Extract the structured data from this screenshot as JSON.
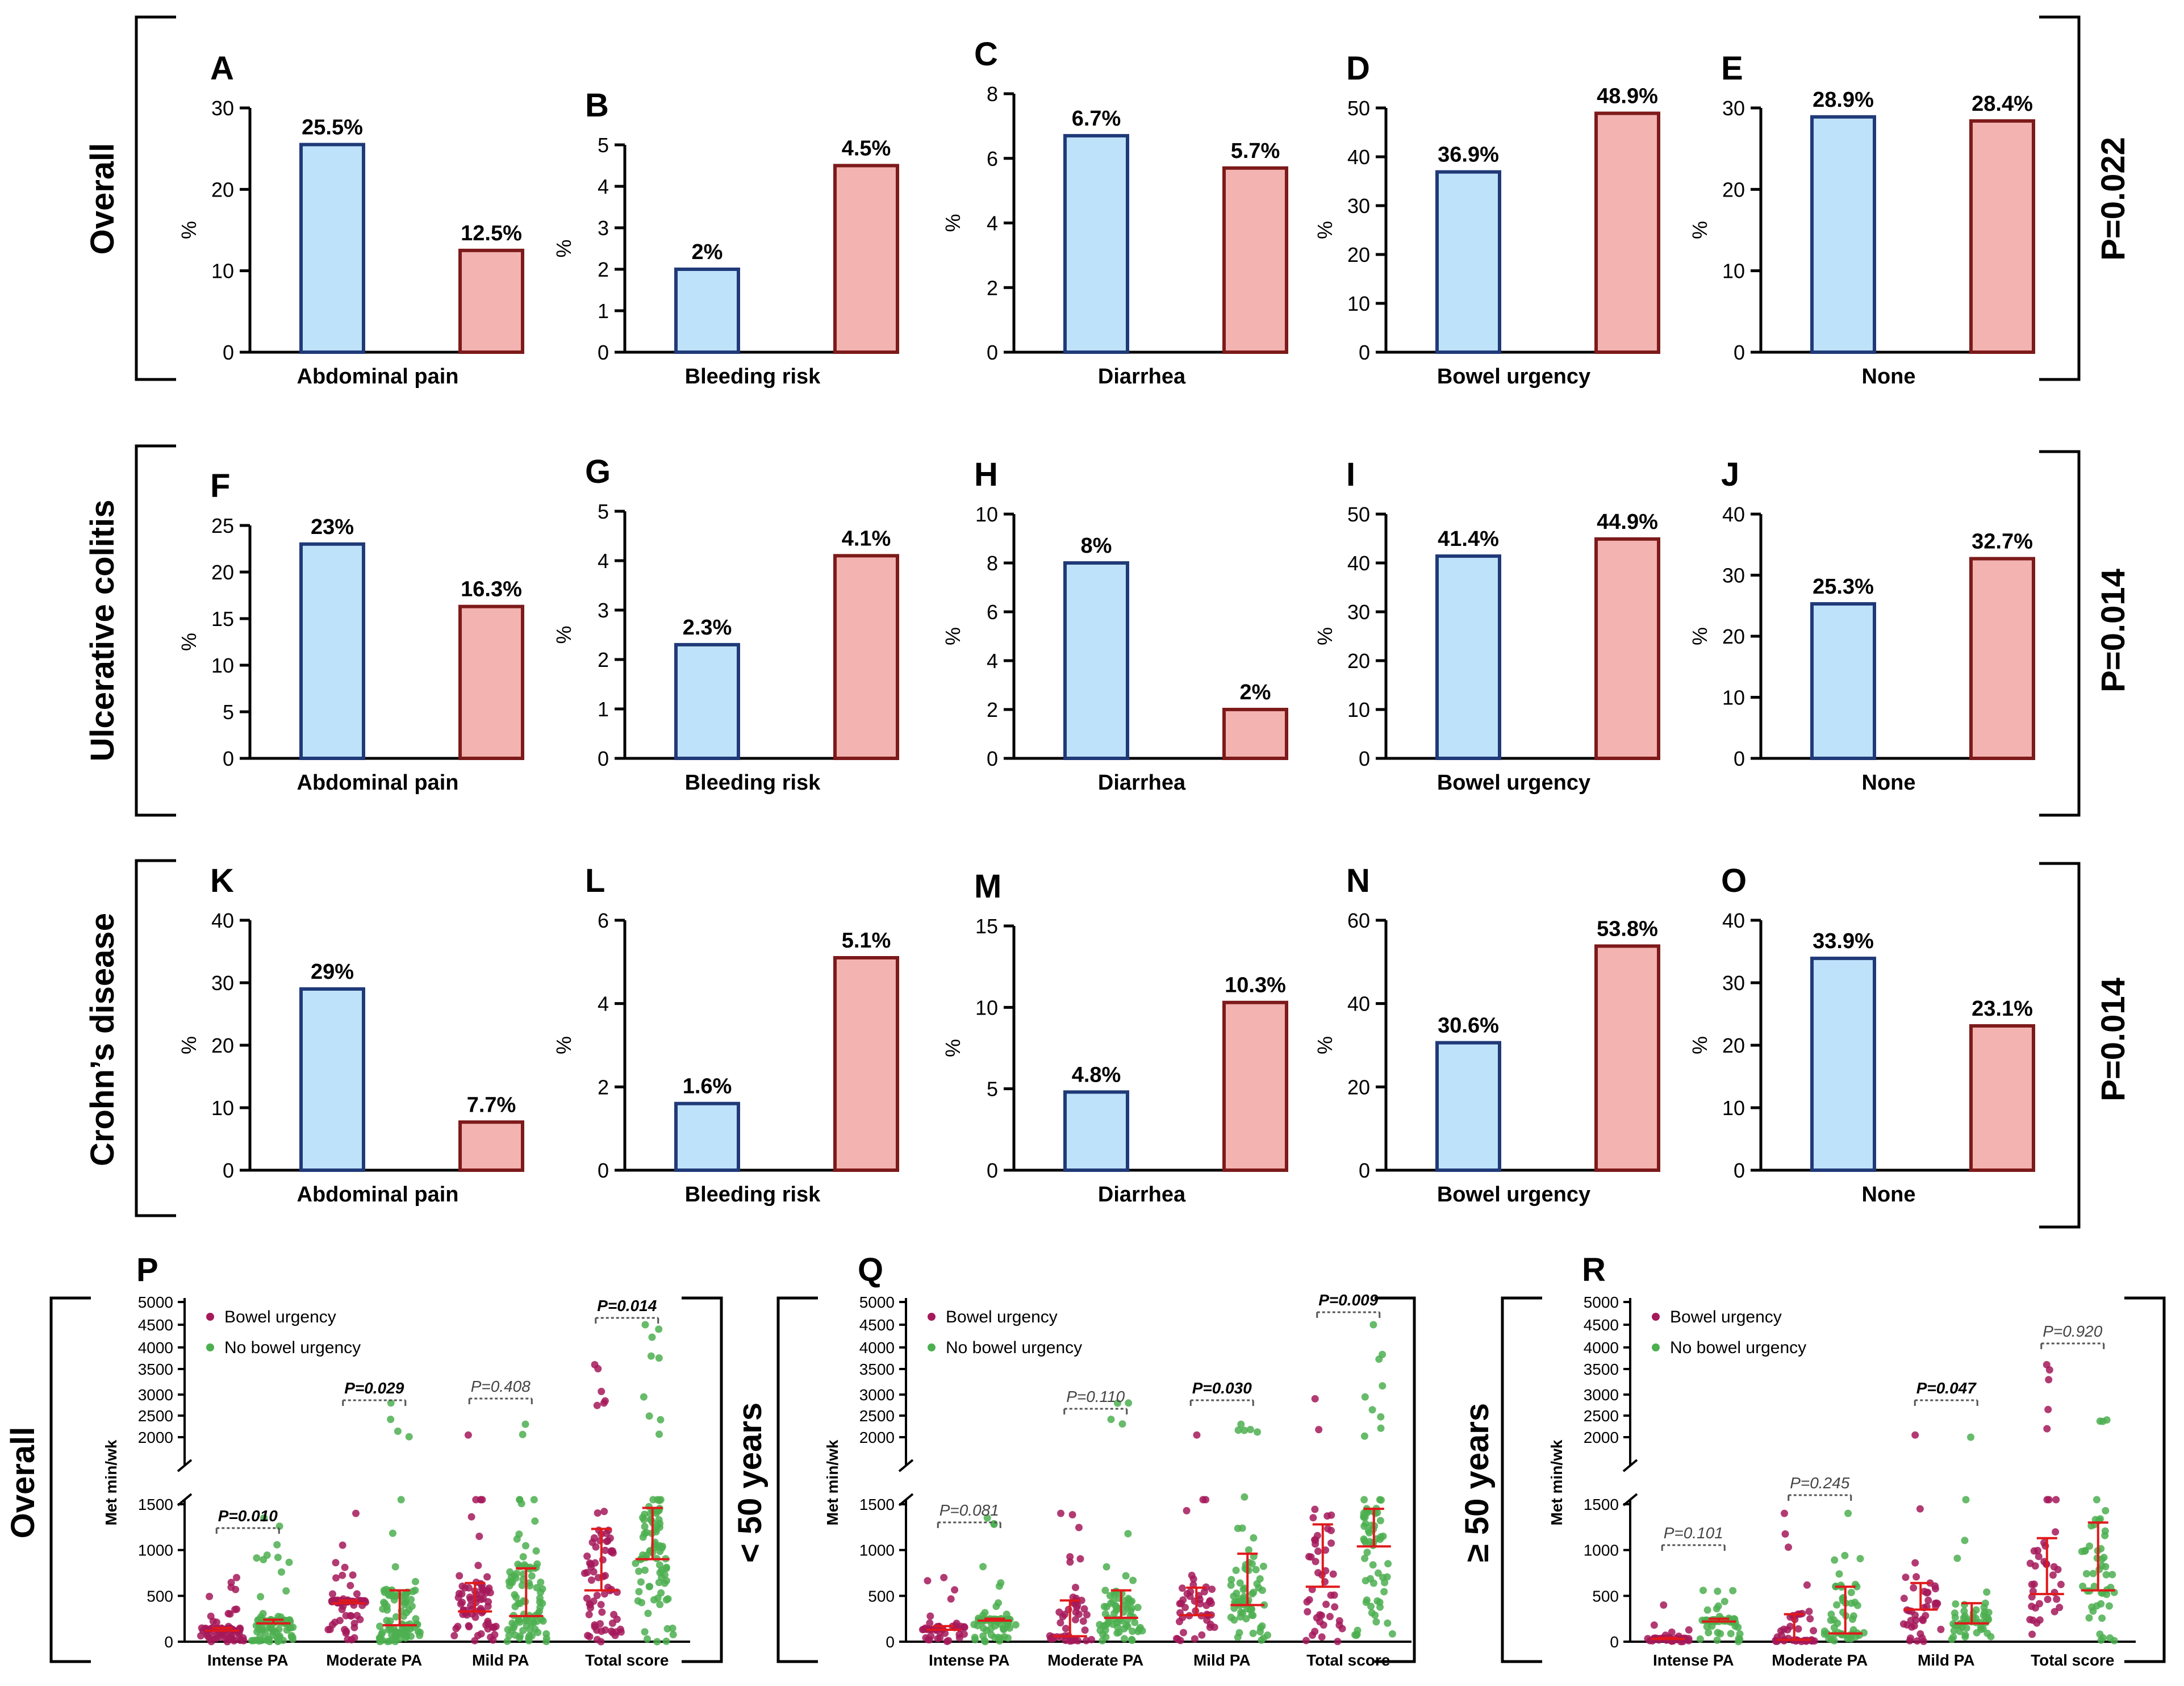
{
  "colors": {
    "blue_fill": "#bfe2fb",
    "blue_edge": "#203a78",
    "red_fill": "#f2b3b1",
    "red_edge": "#7d1a1a",
    "urgency_dot": "#a5195b",
    "no_urgency_dot": "#4caf50",
    "median_line": "#e0191b",
    "axis": "#000000"
  },
  "row_labels": [
    "Overall",
    "Ulcerative colitis",
    "Crohn’s disease"
  ],
  "row_pvalues": [
    "P=0.022",
    "P=0.014",
    "P=0.014"
  ],
  "bottom_row_labels": [
    "Overall",
    "< 50 years",
    "≥ 50 years"
  ],
  "scatter_legend": [
    "Bowel urgency",
    "No bowel urgency"
  ],
  "scatter_categories": [
    "Intense PA",
    "Moderate PA",
    "Mild PA",
    "Total score"
  ],
  "scatter_ylabel": "Met min/wk",
  "chart_data": [
    {
      "panel": "A",
      "type": "bar",
      "xlabel": "Abdominal pain",
      "ylabel": "%",
      "ylim": [
        0,
        30
      ],
      "ticks": [
        0,
        10,
        20,
        30
      ],
      "values": [
        25.5,
        12.5
      ],
      "labels": [
        "25.5%",
        "12.5%"
      ]
    },
    {
      "panel": "B",
      "type": "bar",
      "xlabel": "Bleeding risk",
      "ylabel": "%",
      "ylim": [
        0,
        5
      ],
      "ticks": [
        0,
        1,
        2,
        3,
        4,
        5
      ],
      "values": [
        2,
        4.5
      ],
      "labels": [
        "2%",
        "4.5%"
      ]
    },
    {
      "panel": "C",
      "type": "bar",
      "xlabel": "Diarrhea",
      "ylabel": "%",
      "ylim": [
        0,
        8
      ],
      "ticks": [
        0,
        2,
        4,
        6,
        8
      ],
      "values": [
        6.7,
        5.7
      ],
      "labels": [
        "6.7%",
        "5.7%"
      ]
    },
    {
      "panel": "D",
      "type": "bar",
      "xlabel": "Bowel urgency",
      "ylabel": "%",
      "ylim": [
        0,
        50
      ],
      "ticks": [
        0,
        10,
        20,
        30,
        40,
        50
      ],
      "values": [
        36.9,
        48.9
      ],
      "labels": [
        "36.9%",
        "48.9%"
      ]
    },
    {
      "panel": "E",
      "type": "bar",
      "xlabel": "None",
      "ylabel": "%",
      "ylim": [
        0,
        30
      ],
      "ticks": [
        0,
        10,
        20,
        30
      ],
      "values": [
        28.9,
        28.4
      ],
      "labels": [
        "28.9%",
        "28.4%"
      ]
    },
    {
      "panel": "F",
      "type": "bar",
      "xlabel": "Abdominal pain",
      "ylabel": "%",
      "ylim": [
        0,
        25
      ],
      "ticks": [
        0,
        5,
        10,
        15,
        20,
        25
      ],
      "values": [
        23,
        16.3
      ],
      "labels": [
        "23%",
        "16.3%"
      ]
    },
    {
      "panel": "G",
      "type": "bar",
      "xlabel": "Bleeding risk",
      "ylabel": "%",
      "ylim": [
        0,
        5
      ],
      "ticks": [
        0,
        1,
        2,
        3,
        4,
        5
      ],
      "values": [
        2.3,
        4.1
      ],
      "labels": [
        "2.3%",
        "4.1%"
      ]
    },
    {
      "panel": "H",
      "type": "bar",
      "xlabel": "Diarrhea",
      "ylabel": "%",
      "ylim": [
        0,
        10
      ],
      "ticks": [
        0,
        2,
        4,
        6,
        8,
        10
      ],
      "values": [
        8,
        2
      ],
      "labels": [
        "8%",
        "2%"
      ]
    },
    {
      "panel": "I",
      "type": "bar",
      "xlabel": "Bowel urgency",
      "ylabel": "%",
      "ylim": [
        0,
        50
      ],
      "ticks": [
        0,
        10,
        20,
        30,
        40,
        50
      ],
      "values": [
        41.4,
        44.9
      ],
      "labels": [
        "41.4%",
        "44.9%"
      ]
    },
    {
      "panel": "J",
      "type": "bar",
      "xlabel": "None",
      "ylabel": "%",
      "ylim": [
        0,
        40
      ],
      "ticks": [
        0,
        10,
        20,
        30,
        40
      ],
      "values": [
        25.3,
        32.7
      ],
      "labels": [
        "25.3%",
        "32.7%"
      ]
    },
    {
      "panel": "K",
      "type": "bar",
      "xlabel": "Abdominal pain",
      "ylabel": "%",
      "ylim": [
        0,
        40
      ],
      "ticks": [
        0,
        10,
        20,
        30,
        40
      ],
      "values": [
        29,
        7.7
      ],
      "labels": [
        "29%",
        "7.7%"
      ]
    },
    {
      "panel": "L",
      "type": "bar",
      "xlabel": "Bleeding risk",
      "ylabel": "%",
      "ylim": [
        0,
        6
      ],
      "ticks": [
        0,
        2,
        4,
        6
      ],
      "values": [
        1.6,
        5.1
      ],
      "labels": [
        "1.6%",
        "5.1%"
      ]
    },
    {
      "panel": "M",
      "type": "bar",
      "xlabel": "Diarrhea",
      "ylabel": "%",
      "ylim": [
        0,
        15
      ],
      "ticks": [
        0,
        5,
        10,
        15
      ],
      "values": [
        4.8,
        10.3
      ],
      "labels": [
        "4.8%",
        "10.3%"
      ]
    },
    {
      "panel": "N",
      "type": "bar",
      "xlabel": "Bowel urgency",
      "ylabel": "%",
      "ylim": [
        0,
        60
      ],
      "ticks": [
        0,
        20,
        40,
        60
      ],
      "values": [
        30.6,
        53.8
      ],
      "labels": [
        "30.6%",
        "53.8%"
      ]
    },
    {
      "panel": "O",
      "type": "bar",
      "xlabel": "None",
      "ylabel": "%",
      "ylim": [
        0,
        40
      ],
      "ticks": [
        0,
        10,
        20,
        30,
        40
      ],
      "values": [
        33.9,
        23.1
      ],
      "labels": [
        "33.9%",
        "23.1%"
      ]
    },
    {
      "panel": "P",
      "type": "scatter",
      "ylabel": "Met min/wk",
      "yticks_low": [
        "0",
        "500",
        "1000",
        "1500"
      ],
      "yticks_high": [
        "2000",
        "2500",
        "3000",
        "3500",
        "4000",
        "4500",
        "5000"
      ],
      "pvalues": [
        "P=0.010",
        "P=0.029",
        "P=0.408",
        "P=0.014"
      ],
      "pvalue_bold": [
        true,
        true,
        false,
        true
      ],
      "medians": {
        "urgency": [
          120,
          420,
          330,
          560
        ],
        "no_urgency": [
          200,
          180,
          280,
          900
        ]
      },
      "iqr_top": {
        "urgency": [
          150,
          450,
          640,
          1230
        ],
        "no_urgency": [
          240,
          560,
          800,
          1460
        ]
      },
      "max": {
        "urgency": [
          700,
          1400,
          2050,
          3600
        ],
        "no_urgency": [
          1350,
          2800,
          2300,
          4500
        ]
      },
      "n": {
        "urgency": 70,
        "no_urgency": 90
      }
    },
    {
      "panel": "Q",
      "type": "scatter",
      "ylabel": "Met min/wk",
      "yticks_low": [
        "0",
        "500",
        "1000",
        "1500"
      ],
      "yticks_high": [
        "2000",
        "2500",
        "3000",
        "3500",
        "4000",
        "4500",
        "5000"
      ],
      "pvalues": [
        "P=0.081",
        "P=0.110",
        "P=0.030",
        "P=0.009"
      ],
      "pvalue_bold": [
        false,
        false,
        true,
        true
      ],
      "medians": {
        "urgency": [
          130,
          60,
          290,
          600
        ],
        "no_urgency": [
          230,
          260,
          400,
          1040
        ]
      },
      "iqr_top": {
        "urgency": [
          170,
          450,
          590,
          1280
        ],
        "no_urgency": [
          250,
          560,
          960,
          1450
        ]
      },
      "max": {
        "urgency": [
          700,
          1400,
          2050,
          2900
        ],
        "no_urgency": [
          1350,
          2800,
          2300,
          4500
        ]
      },
      "n": {
        "urgency": 45,
        "no_urgency": 70
      }
    },
    {
      "panel": "R",
      "type": "scatter",
      "ylabel": "Met min/wk",
      "yticks_low": [
        "0",
        "500",
        "1000",
        "1500"
      ],
      "yticks_high": [
        "2000",
        "2500",
        "3000",
        "3500",
        "4000",
        "4500",
        "5000"
      ],
      "pvalues": [
        "P=0.101",
        "P=0.245",
        "P=0.047",
        "P=0.920"
      ],
      "pvalue_bold": [
        false,
        false,
        true,
        false
      ],
      "medians": {
        "urgency": [
          30,
          20,
          350,
          520
        ],
        "no_urgency": [
          220,
          90,
          200,
          560
        ]
      },
      "iqr_top": {
        "urgency": [
          40,
          300,
          640,
          1130
        ],
        "no_urgency": [
          250,
          600,
          420,
          1300
        ]
      },
      "max": {
        "urgency": [
          400,
          1400,
          2050,
          3600
        ],
        "no_urgency": [
          560,
          1400,
          2000,
          2400
        ]
      },
      "n": {
        "urgency": 40,
        "no_urgency": 50
      }
    }
  ]
}
